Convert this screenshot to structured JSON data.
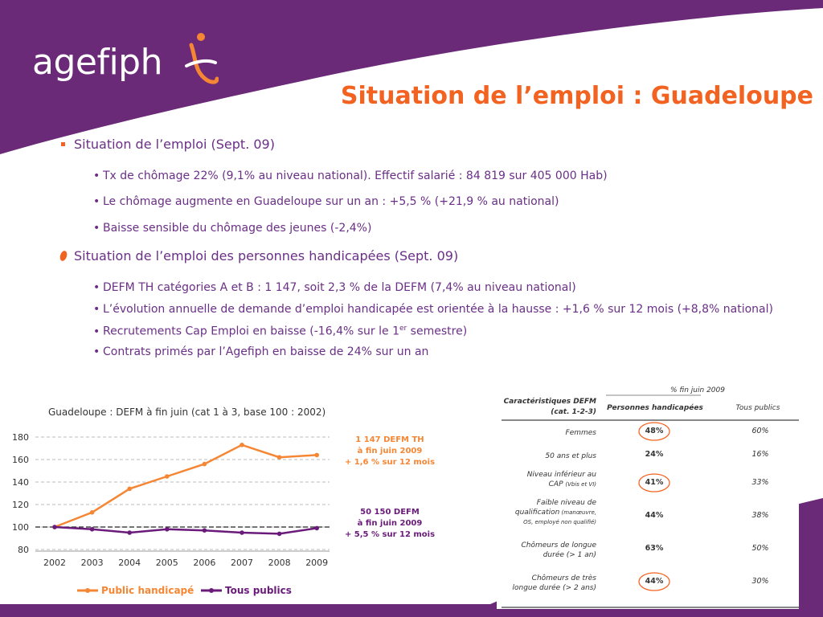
{
  "logo": {
    "text": "agefiph"
  },
  "title": "Situation de l’emploi : Guadeloupe",
  "sections": [
    {
      "heading": "Situation de l’emploi (Sept. 09)",
      "items": [
        "Tx de chômage 22%  (9,1% au niveau national). Effectif salarié : 84 819 sur 405 000 Hab)",
        "Le chômage augmente en Guadeloupe sur un an : +5,5 % (+21,9 % au national)",
        "Baisse sensible du chômage des jeunes (-2,4%)"
      ]
    },
    {
      "heading": "Situation de l’emploi des personnes handicapées (Sept. 09)",
      "items": [
        "DEFM TH catégories A et B : 1 147, soit  2,3 % de la DEFM (7,4% au niveau national)",
        "L’évolution annuelle de demande d’emploi handicapée est orientée à la hausse : +1,6 % sur 12 mois (+8,8% national)",
        "Recrutements Cap Emploi en baisse (-16,4% sur le 1",
        "Contrats primés par l’Agefiph en baisse de 24% sur un an"
      ],
      "sup": "er",
      "after_sup": " semestre)"
    }
  ],
  "chart_data": {
    "type": "line",
    "title": "Guadeloupe : DEFM à fin juin (cat 1 à 3, base 100 : 2002)",
    "categories": [
      "2002",
      "2003",
      "2004",
      "2005",
      "2006",
      "2007",
      "2008",
      "2009"
    ],
    "series": [
      {
        "name": "Public handicapé",
        "color": "#f58634",
        "values": [
          100,
          113,
          134,
          145,
          156,
          173,
          162,
          164
        ]
      },
      {
        "name": "Tous publics",
        "color": "#6a1b7a",
        "values": [
          100,
          98,
          95,
          98,
          97,
          95,
          94,
          99
        ]
      }
    ],
    "ylim": [
      80,
      180
    ],
    "yticks": [
      "180",
      "160",
      "140",
      "120",
      "100",
      "80"
    ],
    "reference_line": 100,
    "annotations": [
      {
        "lines": [
          "1 147 DEFM TH",
          "à fin juin 2009",
          "+ 1,6 % sur 12 mois"
        ],
        "color": "#f58634"
      },
      {
        "lines": [
          "50 150 DEFM",
          "à fin juin 2009",
          "+ 5,5 % sur 12 mois"
        ],
        "color": "#6a1b7a"
      }
    ]
  },
  "table": {
    "period": "% fin juin 2009",
    "col_header_1": "Caractéristiques DEFM",
    "col_header_1b": "(cat. 1-2-3)",
    "col_header_2": "Personnes handicapées",
    "col_header_3": "Tous publics",
    "rows": [
      {
        "label": [
          "Femmes"
        ],
        "small": "",
        "ph": "48%",
        "tp": "60%",
        "circled": true
      },
      {
        "label": [
          "50 ans et plus"
        ],
        "small": "",
        "ph": "24%",
        "tp": "16%",
        "circled": false
      },
      {
        "label": [
          "Niveau inférieur au",
          "CAP"
        ],
        "small": "(Vbis et VI)",
        "ph": "41%",
        "tp": "33%",
        "circled": true
      },
      {
        "label": [
          "Faible niveau de",
          "qualification"
        ],
        "small": "(manœuvre,",
        "small2": "OS, employé non qualifié)",
        "ph": "44%",
        "tp": "38%",
        "circled": false
      },
      {
        "label": [
          "Chômeurs de longue",
          "durée (> 1 an)"
        ],
        "small": "",
        "ph": "63%",
        "tp": "50%",
        "circled": false
      },
      {
        "label": [
          "Chômeurs de très",
          "longue durée (> 2 ans)"
        ],
        "small": "",
        "ph": "44%",
        "tp": "30%",
        "circled": true
      }
    ]
  }
}
